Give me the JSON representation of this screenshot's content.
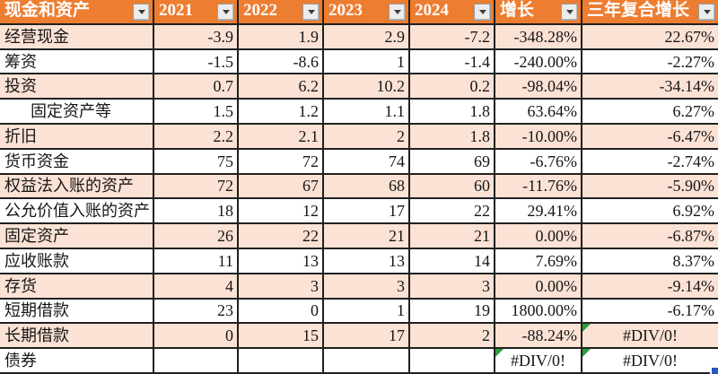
{
  "app": {
    "kind": "spreadsheet-table",
    "colors": {
      "header_bg": "#ED7D31",
      "header_text": "#FFFFFF",
      "band_row_bg": "#FBE2D5",
      "plain_row_bg": "#FFFFFF",
      "grid_border": "#202020",
      "cell_text": "#161616",
      "error_triangle_green": "#2E9E3E",
      "fill_handle_blue": "#2456C4",
      "filter_button_bg": "#ECECEC"
    }
  },
  "table": {
    "header": {
      "filter_icon": "chevron-down-icon",
      "columns": [
        "现金和资产",
        "2021",
        "2022",
        "2023",
        "2024",
        "增长",
        "三年复合增长"
      ]
    },
    "rows": [
      {
        "label": "经营现金",
        "indent": false,
        "values": [
          "-3.9",
          "1.9",
          "2.9",
          "-7.2",
          "-348.28%",
          "22.67%"
        ]
      },
      {
        "label": "筹资",
        "indent": false,
        "values": [
          "-1.5",
          "-8.6",
          "1",
          "-1.4",
          "-240.00%",
          "-2.27%"
        ]
      },
      {
        "label": "投资",
        "indent": false,
        "values": [
          "0.7",
          "6.2",
          "10.2",
          "0.2",
          "-98.04%",
          "-34.14%"
        ]
      },
      {
        "label": "固定资产等",
        "indent": true,
        "values": [
          "1.5",
          "1.2",
          "1.1",
          "1.8",
          "63.64%",
          "6.27%"
        ]
      },
      {
        "label": "折旧",
        "indent": false,
        "values": [
          "2.2",
          "2.1",
          "2",
          "1.8",
          "-10.00%",
          "-6.47%"
        ]
      },
      {
        "label": "货币资金",
        "indent": false,
        "values": [
          "75",
          "72",
          "74",
          "69",
          "-6.76%",
          "-2.74%"
        ]
      },
      {
        "label": "权益法入账的资产",
        "indent": false,
        "values": [
          "72",
          "67",
          "68",
          "60",
          "-11.76%",
          "-5.90%"
        ]
      },
      {
        "label": "公允价值入账的资产",
        "indent": false,
        "values": [
          "18",
          "12",
          "17",
          "22",
          "29.41%",
          "6.92%"
        ]
      },
      {
        "label": "固定资产",
        "indent": false,
        "values": [
          "26",
          "22",
          "21",
          "21",
          "0.00%",
          "-6.87%"
        ]
      },
      {
        "label": "应收账款",
        "indent": false,
        "values": [
          "11",
          "13",
          "13",
          "14",
          "7.69%",
          "8.37%"
        ]
      },
      {
        "label": "存货",
        "indent": false,
        "values": [
          "4",
          "3",
          "3",
          "3",
          "0.00%",
          "-9.14%"
        ]
      },
      {
        "label": "短期借款",
        "indent": false,
        "values": [
          "23",
          "0",
          "1",
          "19",
          "1800.00%",
          "-6.17%"
        ]
      },
      {
        "label": "长期借款",
        "indent": false,
        "values": [
          "0",
          "15",
          "17",
          "2",
          "-88.24%",
          "#DIV/0!"
        ]
      },
      {
        "label": "债券",
        "indent": false,
        "values": [
          "",
          "",
          "",
          "",
          "#DIV/0!",
          "#DIV/0!"
        ]
      }
    ],
    "error_value_marker": "#",
    "fill_handle": "autofill-handle"
  }
}
